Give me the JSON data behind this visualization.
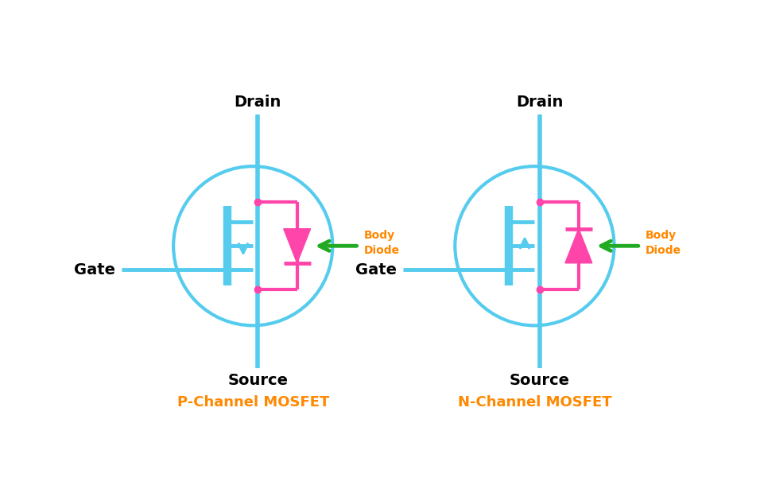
{
  "bg_color": "#ffffff",
  "sky_blue": "#55CCEE",
  "pink": "#FF44AA",
  "green": "#22AA22",
  "orange": "#FF8800",
  "black": "#000000",
  "p_label": "P-Channel MOSFET",
  "n_label": "N-Channel MOSFET",
  "body_diode": "Body\nDiode",
  "drain": "Drain",
  "source": "Source",
  "gate": "Gate",
  "lw": 3.5
}
